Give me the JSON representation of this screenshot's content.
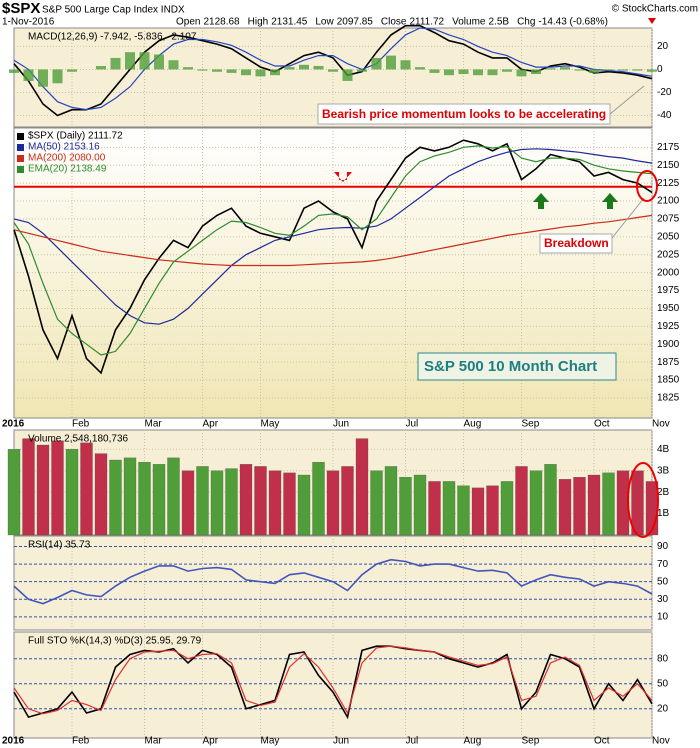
{
  "header": {
    "symbol": "$SPX",
    "description": "S&P 500 Large Cap Index INDX",
    "date": "1-Nov-2016",
    "copyright": "© StockCharts.com",
    "quote": [
      {
        "label": "Open",
        "value": 2128.68
      },
      {
        "label": "High",
        "value": 2131.45
      },
      {
        "label": "Low",
        "value": 2097.85
      },
      {
        "label": "Close",
        "value": 2111.72
      },
      {
        "label": "Volume",
        "value": "2.5B"
      },
      {
        "label": "Chg",
        "value": "-14.43 (-0.68%)"
      }
    ]
  },
  "annotations": {
    "momentum": "Bearish price momentum looks to be accelerating",
    "breakdown": "Breakdown",
    "chart_label": "S&P 500 10 Month Chart"
  },
  "chart_data": [
    {
      "type": "line",
      "label": "MACD(12,26,9) -7.942, -5.836, -2.107",
      "ylim": [
        -50,
        36
      ],
      "yticks": [
        -40,
        -20,
        0,
        20
      ],
      "grid": true,
      "series": [
        {
          "name": "MACD",
          "color": "#000000",
          "values": [
            5,
            -10,
            -30,
            -40,
            -35,
            -35,
            -30,
            -15,
            0,
            15,
            25,
            30,
            28,
            25,
            22,
            18,
            10,
            2,
            -2,
            5,
            12,
            15,
            10,
            -5,
            -2,
            15,
            30,
            38,
            38,
            32,
            25,
            22,
            15,
            10,
            10,
            0,
            -2,
            3,
            5,
            2,
            -3,
            -2,
            -3,
            -5,
            -8
          ]
        },
        {
          "name": "Signal",
          "color": "#2545c0",
          "values": [
            8,
            0,
            -15,
            -28,
            -33,
            -35,
            -33,
            -25,
            -15,
            0,
            12,
            22,
            26,
            26,
            24,
            21,
            15,
            8,
            3,
            3,
            8,
            12,
            12,
            5,
            0,
            5,
            18,
            30,
            36,
            35,
            30,
            26,
            20,
            15,
            12,
            6,
            2,
            2,
            3,
            3,
            0,
            -1,
            -2,
            -4,
            -6
          ]
        },
        {
          "name": "Histogram",
          "kind": "bar",
          "color": "#4f9e3a",
          "values": [
            -3,
            -10,
            -15,
            -12,
            -2,
            0,
            3,
            10,
            15,
            15,
            13,
            8,
            2,
            -1,
            -2,
            -3,
            -5,
            -6,
            -5,
            2,
            4,
            3,
            -2,
            -10,
            -2,
            10,
            12,
            8,
            2,
            -3,
            -5,
            -4,
            -5,
            -5,
            -2,
            -6,
            -4,
            1,
            2,
            -1,
            -3,
            -1,
            -1,
            -1,
            -2
          ]
        }
      ]
    },
    {
      "type": "line",
      "categories": [
        "2016",
        null,
        null,
        null,
        "Feb",
        null,
        null,
        null,
        null,
        "Mar",
        null,
        null,
        null,
        "Apr",
        null,
        null,
        null,
        "May",
        null,
        null,
        null,
        null,
        "Jun",
        null,
        null,
        null,
        null,
        "Jul",
        null,
        null,
        null,
        "Aug",
        null,
        null,
        null,
        "Sep",
        null,
        null,
        null,
        null,
        "Oct",
        null,
        null,
        null,
        "Nov"
      ],
      "ylim": [
        1797,
        2202
      ],
      "yticks": [
        1825,
        1850,
        1875,
        1900,
        1925,
        1950,
        1975,
        2000,
        2025,
        2050,
        2075,
        2100,
        2125,
        2150,
        2175
      ],
      "grid": true,
      "legend": "top-left",
      "hlines": [
        {
          "value": 2120,
          "color": "#ee0000"
        }
      ],
      "series": [
        {
          "name": "$SPX (Daily) 2111.72",
          "color": "#000000",
          "values": [
            2060,
            1995,
            1920,
            1880,
            1940,
            1880,
            1860,
            1920,
            1950,
            1990,
            2020,
            2045,
            2035,
            2065,
            2080,
            2090,
            2065,
            2055,
            2050,
            2045,
            2090,
            2100,
            2085,
            2075,
            2035,
            2100,
            2130,
            2160,
            2175,
            2170,
            2175,
            2185,
            2180,
            2170,
            2180,
            2130,
            2145,
            2165,
            2160,
            2155,
            2135,
            2140,
            2130,
            2125,
            2112
          ]
        },
        {
          "name": "MA(50) 2153.16",
          "color": "#1a2a9a",
          "values": [
            2075,
            2070,
            2055,
            2035,
            2015,
            1995,
            1975,
            1955,
            1940,
            1930,
            1928,
            1935,
            1950,
            1970,
            1990,
            2010,
            2025,
            2035,
            2045,
            2050,
            2055,
            2060,
            2062,
            2063,
            2062,
            2065,
            2075,
            2090,
            2105,
            2120,
            2135,
            2145,
            2155,
            2162,
            2168,
            2172,
            2173,
            2172,
            2170,
            2168,
            2165,
            2162,
            2160,
            2156,
            2153
          ]
        },
        {
          "name": "MA(200) 2080.00",
          "color": "#cc2a1a",
          "values": [
            2060,
            2055,
            2050,
            2045,
            2040,
            2035,
            2030,
            2027,
            2024,
            2021,
            2018,
            2016,
            2014,
            2012,
            2011,
            2010,
            2010,
            2010,
            2010,
            2010,
            2011,
            2012,
            2013,
            2014,
            2015,
            2017,
            2020,
            2024,
            2028,
            2032,
            2036,
            2040,
            2044,
            2048,
            2052,
            2055,
            2058,
            2061,
            2064,
            2066,
            2069,
            2071,
            2074,
            2077,
            2080
          ]
        },
        {
          "name": "EMA(20) 2138.49",
          "color": "#2e8b2e",
          "values": [
            2070,
            2040,
            1985,
            1935,
            1915,
            1900,
            1885,
            1890,
            1915,
            1950,
            1985,
            2015,
            2030,
            2045,
            2060,
            2072,
            2070,
            2063,
            2055,
            2052,
            2065,
            2080,
            2082,
            2078,
            2060,
            2075,
            2105,
            2135,
            2155,
            2163,
            2168,
            2175,
            2177,
            2174,
            2176,
            2160,
            2155,
            2160,
            2160,
            2158,
            2150,
            2145,
            2142,
            2140,
            2138
          ]
        }
      ]
    },
    {
      "type": "bar",
      "label": "Volume 2,548,180,736",
      "ylim": [
        0,
        4.9
      ],
      "yticks": [
        {
          "value": 1,
          "label": "1B"
        },
        {
          "value": 2,
          "label": "2B"
        },
        {
          "value": 3,
          "label": "3B"
        },
        {
          "value": 4,
          "label": "4B"
        }
      ],
      "grid": true,
      "up_color": "#4f9e3a",
      "down_color": "#c0304a",
      "values": [
        4.0,
        4.5,
        4.2,
        4.4,
        4.0,
        4.3,
        3.8,
        3.5,
        3.6,
        3.4,
        3.3,
        3.6,
        3.0,
        3.2,
        3.0,
        3.1,
        3.3,
        3.2,
        3.0,
        2.9,
        2.8,
        3.4,
        3.0,
        3.2,
        4.5,
        3.0,
        3.2,
        2.7,
        2.8,
        2.5,
        2.5,
        2.3,
        2.2,
        2.3,
        2.5,
        3.2,
        3.0,
        3.3,
        2.6,
        2.7,
        2.8,
        2.9,
        3.0,
        3.0,
        2.5
      ]
    },
    {
      "type": "line",
      "label": "RSI(14) 35.73",
      "ylim": [
        -5,
        102
      ],
      "yticks": [
        10,
        30,
        50,
        70,
        90
      ],
      "grid": true,
      "series": [
        {
          "name": "RSI",
          "color": "#4455bb",
          "values": [
            45,
            30,
            25,
            32,
            40,
            35,
            33,
            45,
            55,
            62,
            68,
            68,
            62,
            65,
            66,
            64,
            52,
            50,
            48,
            58,
            60,
            55,
            50,
            40,
            58,
            70,
            75,
            73,
            68,
            70,
            70,
            66,
            62,
            63,
            60,
            45,
            52,
            58,
            55,
            53,
            45,
            50,
            48,
            45,
            36
          ]
        }
      ]
    },
    {
      "type": "line",
      "label": "Full STO %K(14,3) %D(3) 25.95, 29.79",
      "ylim": [
        -15,
        112
      ],
      "yticks": [
        20,
        50,
        80
      ],
      "grid": true,
      "categories": [
        "2016",
        null,
        null,
        null,
        "Feb",
        null,
        null,
        null,
        null,
        "Mar",
        null,
        null,
        null,
        "Apr",
        null,
        null,
        null,
        "May",
        null,
        null,
        null,
        null,
        "Jun",
        null,
        null,
        null,
        null,
        "Jul",
        null,
        null,
        null,
        "Aug",
        null,
        null,
        null,
        "Sep",
        null,
        null,
        null,
        null,
        "Oct",
        null,
        null,
        null,
        "Nov"
      ],
      "series": [
        {
          "name": "%K",
          "color": "#000000",
          "values": [
            40,
            10,
            15,
            20,
            40,
            15,
            20,
            70,
            85,
            90,
            88,
            92,
            75,
            90,
            85,
            70,
            20,
            25,
            30,
            85,
            88,
            60,
            40,
            10,
            90,
            95,
            95,
            92,
            90,
            88,
            80,
            75,
            70,
            75,
            85,
            20,
            40,
            85,
            80,
            70,
            20,
            50,
            30,
            55,
            26
          ]
        },
        {
          "name": "%D",
          "color": "#e03030",
          "values": [
            45,
            20,
            14,
            18,
            30,
            25,
            18,
            55,
            80,
            88,
            89,
            90,
            80,
            85,
            86,
            75,
            30,
            24,
            28,
            70,
            86,
            70,
            45,
            15,
            75,
            93,
            95,
            93,
            90,
            88,
            82,
            77,
            72,
            74,
            82,
            30,
            35,
            75,
            82,
            72,
            30,
            45,
            35,
            50,
            30
          ]
        }
      ]
    }
  ]
}
